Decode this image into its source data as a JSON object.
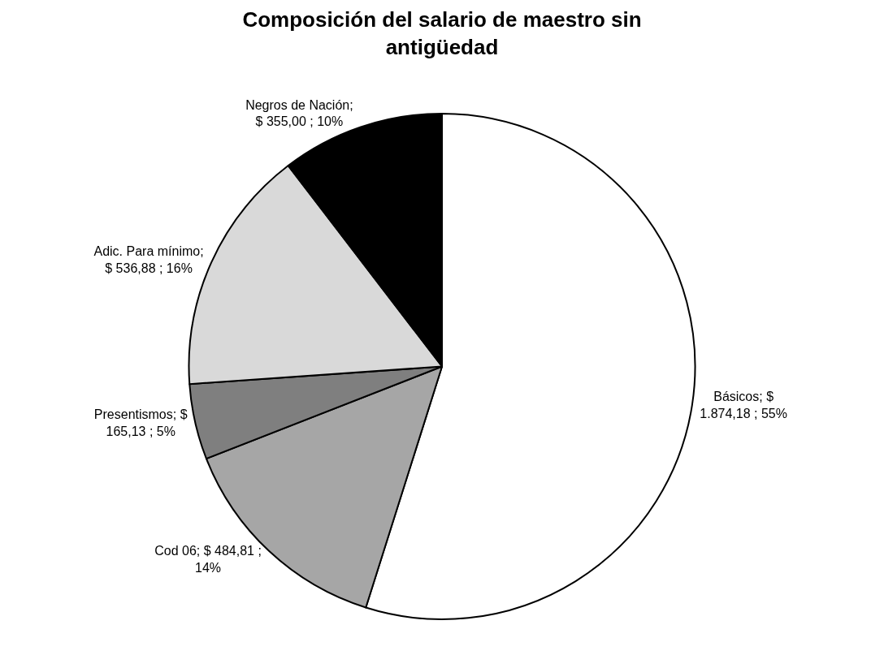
{
  "chart_data": {
    "type": "pie",
    "title": "Composición del salario de maestro sin antigüedad",
    "categories": [
      "Básicos",
      "Cod 06",
      "Presentismos",
      "Adic. Para mínimo",
      "Negros de Nación"
    ],
    "values": [
      1874.18,
      484.81,
      165.13,
      536.88,
      355.0
    ],
    "value_labels": [
      "; $ 1.874,18 ; 55%",
      "; $ 484,81 ; 14%",
      "; $ 165,13 ; 5%",
      "; $ 536,88 ; 16%",
      "; $ 355,00 ; 10%"
    ],
    "colors": [
      "#ffffff",
      "#a6a6a6",
      "#7f7f7f",
      "#d9d9d9",
      "#000000"
    ],
    "legend": false
  }
}
